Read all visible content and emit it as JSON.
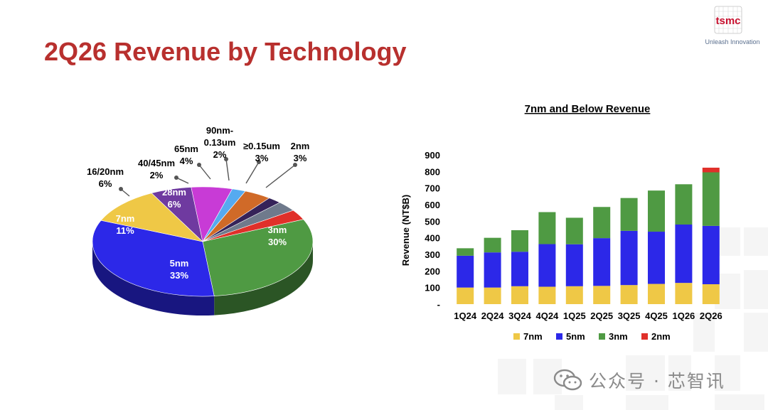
{
  "header": {
    "title": "2Q26 Revenue by Technology",
    "logo_text": "tsmc",
    "slogan": "Unleash Innovation"
  },
  "pie_chart": {
    "type": "pie",
    "title": "",
    "slices": [
      {
        "label": "3nm",
        "value": 30,
        "pct_label": "30%",
        "color": "#4f9a43",
        "label_inside": true
      },
      {
        "label": "5nm",
        "value": 33,
        "pct_label": "33%",
        "color": "#2c28e8",
        "label_inside": true
      },
      {
        "label": "7nm",
        "value": 11,
        "pct_label": "11%",
        "color": "#efc846",
        "label_inside": true
      },
      {
        "label": "16/20nm",
        "value": 6,
        "pct_label": "6%",
        "color": "#6f3aa0",
        "label_inside": false
      },
      {
        "label": "28nm",
        "value": 6,
        "pct_label": "6%",
        "color": "#c83bd6",
        "label_inside": true
      },
      {
        "label": "40/45nm",
        "value": 2,
        "pct_label": "2%",
        "color": "#55aaf0",
        "label_inside": false
      },
      {
        "label": "65nm",
        "value": 4,
        "pct_label": "4%",
        "color": "#d06a28",
        "label_inside": false
      },
      {
        "label": "90nm-0.13um",
        "value": 2,
        "pct_label": "2%",
        "color": "#352359",
        "label_inside": false
      },
      {
        "label": "≥0.15um",
        "value": 3,
        "pct_label": "3%",
        "color": "#6f7a8c",
        "label_inside": false
      },
      {
        "label": "2nm",
        "value": 3,
        "pct_label": "3%",
        "color": "#e0302a",
        "label_inside": false
      }
    ]
  },
  "chart_data": {
    "type": "bar",
    "stacked": true,
    "title": "7nm and Below Revenue",
    "xlabel": "",
    "ylabel": "Revenue (NT$B)",
    "ylim": [
      0,
      900
    ],
    "yticks": [
      "-",
      "100",
      "200",
      "300",
      "400",
      "500",
      "600",
      "700",
      "800",
      "900"
    ],
    "categories": [
      "1Q24",
      "2Q24",
      "3Q24",
      "4Q24",
      "1Q25",
      "2Q25",
      "3Q25",
      "4Q25",
      "1Q26",
      "2Q26"
    ],
    "series": [
      {
        "name": "7nm",
        "color": "#efc846",
        "values": [
          100,
          100,
          108,
          105,
          108,
          110,
          115,
          122,
          128,
          120
        ]
      },
      {
        "name": "5nm",
        "color": "#2c28e8",
        "values": [
          192,
          212,
          208,
          257,
          253,
          288,
          327,
          315,
          352,
          352
        ]
      },
      {
        "name": "3nm",
        "color": "#4f9a43",
        "values": [
          45,
          88,
          130,
          193,
          160,
          188,
          198,
          248,
          243,
          323
        ]
      },
      {
        "name": "2nm",
        "color": "#e0302a",
        "values": [
          0,
          0,
          0,
          0,
          0,
          0,
          0,
          0,
          0,
          28
        ]
      }
    ],
    "grid": false,
    "legend": "bottom"
  },
  "watermark": {
    "text": "公众号 · 芯智讯"
  }
}
